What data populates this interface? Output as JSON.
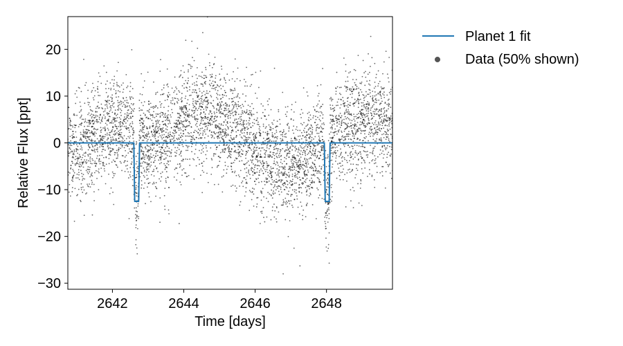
{
  "chart_data": {
    "type": "scatter",
    "xlabel": "Time [days]",
    "ylabel": "Relative Flux [ppt]",
    "xlim": [
      2640.75,
      2649.85
    ],
    "ylim": [
      -31.3,
      27.0
    ],
    "x_ticks": [
      2642,
      2644,
      2646,
      2648
    ],
    "x_tick_labels": [
      "2642",
      "2644",
      "2646",
      "2648"
    ],
    "y_ticks": [
      -30,
      -20,
      -10,
      0,
      10,
      20
    ],
    "y_tick_labels": [
      "−30",
      "−20",
      "−10",
      "0",
      "10",
      "20"
    ],
    "grid": false,
    "legend": {
      "placement": "outside-right",
      "entries": [
        "Planet 1 fit",
        "Data (50% shown)"
      ]
    },
    "colors": {
      "fit": "#1f77b4",
      "data": "#000000"
    },
    "series": [
      {
        "name": "Planet 1 fit",
        "kind": "line",
        "baseline": 0,
        "transits": [
          {
            "t0": 2642.68,
            "half_duration": 0.08,
            "depth": 12.5
          },
          {
            "t0": 2648.02,
            "half_duration": 0.08,
            "depth": 12.5
          }
        ]
      },
      {
        "name": "Data (50% shown)",
        "kind": "scatter",
        "variability_trend": [
          [
            2640.75,
            -2
          ],
          [
            2641.2,
            -1
          ],
          [
            2641.7,
            2
          ],
          [
            2642.2,
            4
          ],
          [
            2642.6,
            2
          ],
          [
            2643.0,
            0
          ],
          [
            2643.5,
            1
          ],
          [
            2644.0,
            5
          ],
          [
            2644.3,
            7
          ],
          [
            2644.8,
            6
          ],
          [
            2645.3,
            3
          ],
          [
            2645.8,
            0
          ],
          [
            2646.3,
            -3
          ],
          [
            2646.8,
            -5
          ],
          [
            2647.3,
            -4
          ],
          [
            2647.8,
            -1
          ],
          [
            2648.3,
            2
          ],
          [
            2648.8,
            4
          ],
          [
            2649.3,
            5
          ],
          [
            2649.85,
            4
          ]
        ],
        "scatter_std": 5.5,
        "n_points": 4800
      }
    ]
  }
}
